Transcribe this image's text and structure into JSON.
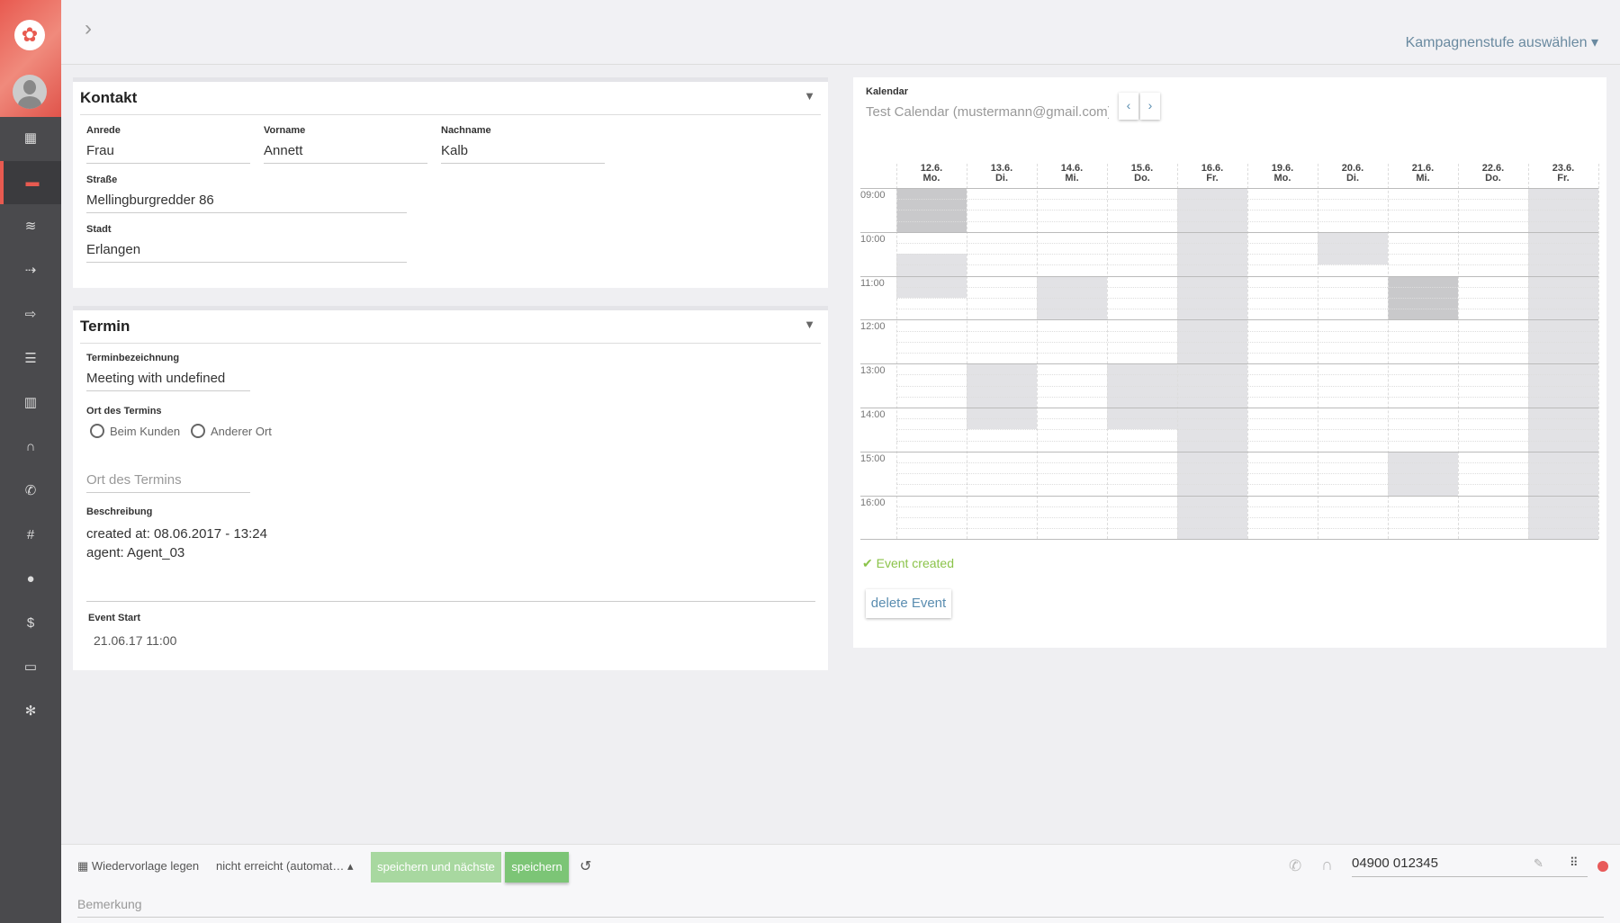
{
  "sidebar": {
    "items": [
      {
        "icon": "dashboard-icon",
        "glyph": "▦"
      },
      {
        "icon": "archive-icon",
        "glyph": "▬",
        "active": true
      },
      {
        "icon": "layers-icon",
        "glyph": "≋"
      },
      {
        "icon": "database-import-icon",
        "glyph": "⇢"
      },
      {
        "icon": "database-export-icon",
        "glyph": "⇨"
      },
      {
        "icon": "database-icon",
        "glyph": "☰"
      },
      {
        "icon": "bar-chart-icon",
        "glyph": "▥"
      },
      {
        "icon": "headset-icon",
        "glyph": "∩"
      },
      {
        "icon": "phone-icon",
        "glyph": "✆"
      },
      {
        "icon": "phone-hash-icon",
        "glyph": "#"
      },
      {
        "icon": "user-icon",
        "glyph": "●"
      },
      {
        "icon": "dollar-icon",
        "glyph": "$"
      },
      {
        "icon": "chat-icon",
        "glyph": "▭"
      },
      {
        "icon": "gear-icon",
        "glyph": "✻"
      }
    ]
  },
  "header": {
    "campaign_select": "Kampagnenstufe auswählen ▾"
  },
  "kontakt": {
    "title": "Kontakt",
    "anrede_label": "Anrede",
    "anrede": "Frau",
    "vorname_label": "Vorname",
    "vorname": "Annett",
    "nachname_label": "Nachname",
    "nachname": "Kalb",
    "strasse_label": "Straße",
    "strasse": "Mellingburgredder 86",
    "stadt_label": "Stadt",
    "stadt": "Erlangen"
  },
  "termin": {
    "title": "Termin",
    "bez_label": "Terminbezeichnung",
    "bez": "Meeting with undefined",
    "ort_label": "Ort des Termins",
    "radio1": "Beim Kunden",
    "radio2": "Anderer Ort",
    "ort_placeholder": "Ort des Termins",
    "beschreibung_label": "Beschreibung",
    "beschreibung_line1": "created at: 08.06.2017 - 13:24",
    "beschreibung_line2": "agent: Agent_03",
    "event_start_label": "Event Start",
    "event_start": "21.06.17 11:00"
  },
  "kalender": {
    "label": "Kalendar",
    "selected": "Test Calendar (mustermann@gmail.com)",
    "status": "✔ Event created",
    "delete_label": "delete Event",
    "days": [
      [
        "12.6.",
        "Mo."
      ],
      [
        "13.6.",
        "Di."
      ],
      [
        "14.6.",
        "Mi."
      ],
      [
        "15.6.",
        "Do."
      ],
      [
        "16.6.",
        "Fr."
      ],
      [
        "19.6.",
        "Mo."
      ],
      [
        "20.6.",
        "Di."
      ],
      [
        "21.6.",
        "Mi."
      ],
      [
        "22.6.",
        "Do."
      ],
      [
        "23.6.",
        "Fr."
      ]
    ],
    "hours": [
      "09:00",
      "10:00",
      "11:00",
      "12:00",
      "13:00",
      "14:00",
      "15:00",
      "16:00"
    ],
    "busy": [
      {
        "day": 0,
        "start": "09:00",
        "end": "10:00",
        "dark": true
      },
      {
        "day": 0,
        "start": "10:30",
        "end": "11:30"
      },
      {
        "day": 1,
        "start": "13:00",
        "end": "14:30"
      },
      {
        "day": 2,
        "start": "11:00",
        "end": "12:00"
      },
      {
        "day": 3,
        "start": "13:00",
        "end": "14:30"
      },
      {
        "day": 4,
        "start": "09:00",
        "end": "17:00"
      },
      {
        "day": 6,
        "start": "10:00",
        "end": "10:45"
      },
      {
        "day": 7,
        "start": "11:00",
        "end": "12:00",
        "dark": true
      },
      {
        "day": 7,
        "start": "15:00",
        "end": "16:00"
      },
      {
        "day": 9,
        "start": "09:00",
        "end": "17:00"
      }
    ]
  },
  "bottom": {
    "wiedervorlage": "Wiedervorlage legen",
    "status_select": "nicht erreicht (automat…",
    "save_next": "speichern und nächste",
    "save": "speichern",
    "phone_number": "04900 012345",
    "bemerkung_placeholder": "Bemerkung"
  }
}
